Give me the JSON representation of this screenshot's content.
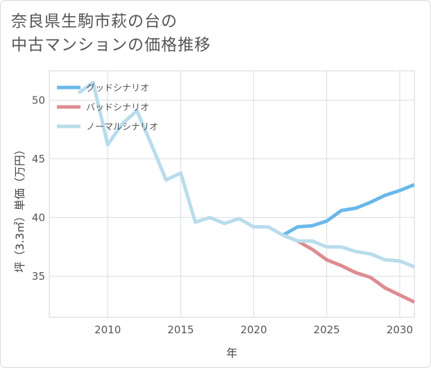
{
  "title": {
    "line1": "奈良県生駒市萩の台の",
    "line2": "中古マンションの価格推移"
  },
  "chart_data": {
    "type": "line",
    "xlabel": "年",
    "ylabel": "坪（3.3㎡）単価（万円）",
    "xlim": [
      2006,
      2031
    ],
    "ylim": [
      31.5,
      52.5
    ],
    "xticks": [
      2010,
      2015,
      2020,
      2025,
      2030
    ],
    "yticks": [
      35,
      40,
      45,
      50
    ],
    "grid": true,
    "legend_position": "top-left",
    "series": [
      {
        "name": "グッドシナリオ",
        "color": "#6bb8ea",
        "x": [
          2022,
          2023,
          2024,
          2025,
          2026,
          2027,
          2028,
          2029,
          2030,
          2031
        ],
        "y": [
          38.5,
          39.2,
          39.3,
          39.7,
          40.6,
          40.8,
          41.3,
          41.9,
          42.3,
          42.8
        ]
      },
      {
        "name": "バッドシナリオ",
        "color": "#de8b92",
        "x": [
          2022,
          2023,
          2024,
          2025,
          2026,
          2027,
          2028,
          2029,
          2030,
          2031
        ],
        "y": [
          38.5,
          38.0,
          37.3,
          36.4,
          35.9,
          35.3,
          34.9,
          34.0,
          33.4,
          32.8
        ]
      },
      {
        "name": "ノーマルシナリオ",
        "color": "#b9dcec",
        "x": [
          2008,
          2009,
          2010,
          2011,
          2012,
          2013,
          2014,
          2015,
          2016,
          2017,
          2018,
          2019,
          2020,
          2021,
          2022,
          2023,
          2024,
          2025,
          2026,
          2027,
          2028,
          2029,
          2030,
          2031
        ],
        "y": [
          50.6,
          51.5,
          46.2,
          48.0,
          49.1,
          46.2,
          43.2,
          43.8,
          39.6,
          40.0,
          39.5,
          39.9,
          39.2,
          39.2,
          38.5,
          38.0,
          38.0,
          37.5,
          37.5,
          37.1,
          36.9,
          36.4,
          36.3,
          35.8
        ]
      }
    ]
  }
}
